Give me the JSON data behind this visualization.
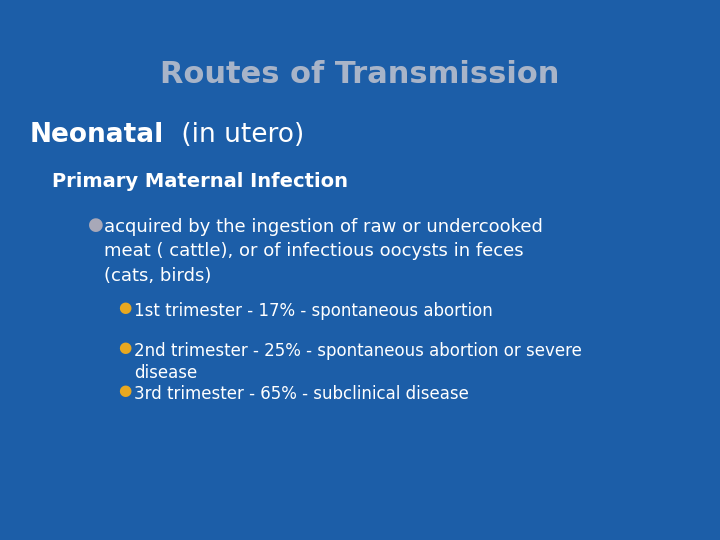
{
  "background_color": "#1c5ea8",
  "title": "Routes of Transmission",
  "title_color": "#a8b4c8",
  "title_fontsize": 22,
  "neonatal_label": "Neonatal",
  "neonatal_suffix": " (in utero)",
  "neonatal_color": "#ffffff",
  "neonatal_fontsize": 19,
  "subheading": "Primary Maternal Infection",
  "subheading_color": "#ffffff",
  "subheading_fontsize": 14,
  "bullet1_marker_color": "#a8a8b8",
  "bullet1_text": "acquired by the ingestion of raw or undercooked\nmeat ( cattle), or of infectious oocysts in feces\n(cats, birds)",
  "bullet1_fontsize": 13,
  "sub_bullets": [
    "1st trimester - 17% - spontaneous abortion",
    "2nd trimester - 25% - spontaneous abortion or severe\ndisease",
    "3rd trimester - 65% - subclinical disease"
  ],
  "sub_bullet_color": "#ffffff",
  "sub_bullet_marker_color": "#e8a820",
  "sub_bullet_fontsize": 12,
  "fig_width": 7.2,
  "fig_height": 5.4,
  "dpi": 100
}
